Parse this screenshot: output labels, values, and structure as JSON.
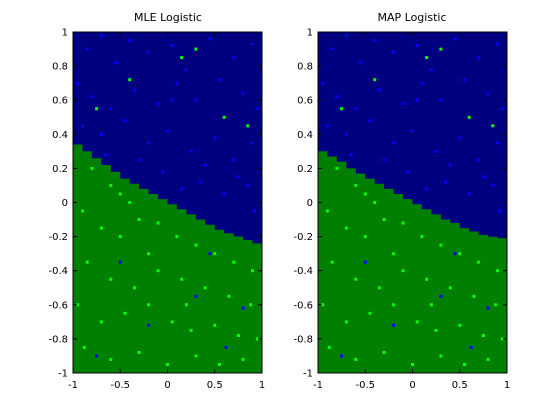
{
  "figure": {
    "colors": {
      "background": "#ffffff",
      "class_a_region": "#000080",
      "class_b_region": "#007f00",
      "class_a_points": "#0000ff",
      "class_b_points": "#00ff00"
    }
  },
  "chart_data": [
    {
      "type": "scatter",
      "title": "MLE Logistic",
      "xlabel": "",
      "ylabel": "",
      "xlim": [
        -1,
        1
      ],
      "ylim": [
        -1,
        1
      ],
      "xticks": [
        "-1",
        "-0.5",
        "0",
        "0.5",
        "1"
      ],
      "yticks": [
        "-1",
        "-0.8",
        "-0.6",
        "-0.4",
        "-0.2",
        "0",
        "0.2",
        "0.4",
        "0.6",
        "0.8",
        "1"
      ],
      "grid": false,
      "background_regions": [
        {
          "region": "upper",
          "color": "#000080"
        },
        {
          "region": "lower",
          "color": "#007f00"
        }
      ],
      "decision_boundary": {
        "x": [
          -1,
          -0.9,
          -0.8,
          -0.7,
          -0.6,
          -0.5,
          -0.4,
          -0.3,
          -0.2,
          -0.1,
          0,
          0.1,
          0.2,
          0.3,
          0.4,
          0.5,
          0.6,
          0.7,
          0.8,
          0.9,
          1
        ],
        "y": [
          0.34,
          0.3,
          0.26,
          0.22,
          0.18,
          0.14,
          0.11,
          0.08,
          0.05,
          0.02,
          -0.01,
          -0.04,
          -0.07,
          -0.1,
          -0.13,
          -0.16,
          -0.18,
          -0.2,
          -0.22,
          -0.24,
          -0.26
        ]
      },
      "series": [
        {
          "color": "#0000ff",
          "points": [
            [
              -0.85,
              0.9
            ],
            [
              -0.7,
              0.98
            ],
            [
              -0.55,
              0.82
            ],
            [
              -0.4,
              0.95
            ],
            [
              -0.2,
              0.88
            ],
            [
              0.05,
              0.92
            ],
            [
              0.2,
              0.78
            ],
            [
              0.45,
              0.96
            ],
            [
              0.7,
              0.85
            ],
            [
              0.9,
              0.93
            ],
            [
              -0.95,
              0.7
            ],
            [
              -0.8,
              0.62
            ],
            [
              -0.6,
              0.55
            ],
            [
              -0.35,
              0.66
            ],
            [
              -0.1,
              0.58
            ],
            [
              0.1,
              0.7
            ],
            [
              0.3,
              0.6
            ],
            [
              0.55,
              0.72
            ],
            [
              0.8,
              0.64
            ],
            [
              0.95,
              0.55
            ],
            [
              -0.9,
              0.45
            ],
            [
              -0.7,
              0.4
            ],
            [
              -0.45,
              0.48
            ],
            [
              -0.2,
              0.35
            ],
            [
              0.0,
              0.42
            ],
            [
              0.25,
              0.3
            ],
            [
              0.5,
              0.38
            ],
            [
              0.7,
              0.25
            ],
            [
              0.9,
              0.35
            ],
            [
              0.35,
              0.12
            ],
            [
              0.6,
              0.05
            ],
            [
              0.85,
              0.1
            ],
            [
              -0.05,
              0.18
            ],
            [
              0.15,
              0.08
            ],
            [
              0.92,
              -0.05
            ],
            [
              -0.65,
              0.28
            ],
            [
              0.75,
              0.15
            ],
            [
              0.4,
              0.22
            ],
            [
              -0.3,
              0.25
            ],
            [
              0.05,
              0.6
            ],
            [
              -0.5,
              -0.35
            ],
            [
              0.3,
              -0.55
            ],
            [
              -0.2,
              -0.72
            ],
            [
              0.8,
              -0.62
            ],
            [
              0.62,
              -0.85
            ],
            [
              -0.75,
              -0.9
            ],
            [
              0.45,
              -0.3
            ]
          ]
        },
        {
          "color": "#00ff00",
          "points": [
            [
              -0.8,
              0.2
            ],
            [
              -0.6,
              0.1
            ],
            [
              -0.4,
              0.0
            ],
            [
              -0.9,
              -0.05
            ],
            [
              -0.7,
              -0.15
            ],
            [
              -0.5,
              -0.2
            ],
            [
              -0.3,
              -0.1
            ],
            [
              -0.1,
              -0.12
            ],
            [
              0.1,
              -0.2
            ],
            [
              0.3,
              -0.25
            ],
            [
              0.5,
              -0.3
            ],
            [
              0.7,
              -0.35
            ],
            [
              0.9,
              -0.4
            ],
            [
              -0.85,
              -0.35
            ],
            [
              -0.6,
              -0.45
            ],
            [
              -0.35,
              -0.5
            ],
            [
              -0.1,
              -0.4
            ],
            [
              0.15,
              -0.45
            ],
            [
              0.4,
              -0.5
            ],
            [
              0.65,
              -0.55
            ],
            [
              0.88,
              -0.6
            ],
            [
              -0.95,
              -0.6
            ],
            [
              -0.7,
              -0.7
            ],
            [
              -0.45,
              -0.65
            ],
            [
              -0.2,
              -0.6
            ],
            [
              0.05,
              -0.7
            ],
            [
              0.25,
              -0.75
            ],
            [
              0.5,
              -0.72
            ],
            [
              0.75,
              -0.78
            ],
            [
              0.95,
              -0.8
            ],
            [
              -0.88,
              -0.85
            ],
            [
              -0.6,
              -0.92
            ],
            [
              -0.3,
              -0.88
            ],
            [
              0.0,
              -0.95
            ],
            [
              0.3,
              -0.9
            ],
            [
              0.55,
              -0.95
            ],
            [
              0.8,
              -0.92
            ],
            [
              -0.5,
              0.05
            ],
            [
              -0.2,
              -0.3
            ],
            [
              0.2,
              -0.6
            ],
            [
              -0.4,
              0.72
            ],
            [
              0.15,
              0.85
            ],
            [
              0.6,
              0.5
            ],
            [
              -0.75,
              0.55
            ],
            [
              0.85,
              0.45
            ],
            [
              0.3,
              0.9
            ]
          ]
        }
      ]
    },
    {
      "type": "scatter",
      "title": "MAP Logistic",
      "xlabel": "",
      "ylabel": "",
      "xlim": [
        -1,
        1
      ],
      "ylim": [
        -1,
        1
      ],
      "xticks": [
        "-1",
        "-0.5",
        "0",
        "0.5",
        "1"
      ],
      "yticks": [
        "-1",
        "-0.8",
        "-0.6",
        "-0.4",
        "-0.2",
        "0",
        "0.2",
        "0.4",
        "0.6",
        "0.8",
        "1"
      ],
      "grid": false,
      "background_regions": [
        {
          "region": "upper",
          "color": "#000080"
        },
        {
          "region": "lower",
          "color": "#007f00"
        }
      ],
      "decision_boundary": {
        "x": [
          -1,
          -0.9,
          -0.8,
          -0.7,
          -0.6,
          -0.5,
          -0.4,
          -0.3,
          -0.2,
          -0.1,
          0,
          0.1,
          0.2,
          0.3,
          0.4,
          0.5,
          0.6,
          0.7,
          0.8,
          0.9,
          1
        ],
        "y": [
          0.3,
          0.27,
          0.24,
          0.2,
          0.17,
          0.14,
          0.11,
          0.08,
          0.05,
          0.02,
          -0.01,
          -0.04,
          -0.07,
          -0.1,
          -0.12,
          -0.15,
          -0.17,
          -0.19,
          -0.2,
          -0.21,
          -0.22
        ]
      },
      "series": [
        {
          "color": "#0000ff",
          "points": [
            [
              -0.85,
              0.9
            ],
            [
              -0.7,
              0.98
            ],
            [
              -0.55,
              0.82
            ],
            [
              -0.4,
              0.95
            ],
            [
              -0.2,
              0.88
            ],
            [
              0.05,
              0.92
            ],
            [
              0.2,
              0.78
            ],
            [
              0.45,
              0.96
            ],
            [
              0.7,
              0.85
            ],
            [
              0.9,
              0.93
            ],
            [
              -0.95,
              0.7
            ],
            [
              -0.8,
              0.62
            ],
            [
              -0.6,
              0.55
            ],
            [
              -0.35,
              0.66
            ],
            [
              -0.1,
              0.58
            ],
            [
              0.1,
              0.7
            ],
            [
              0.3,
              0.6
            ],
            [
              0.55,
              0.72
            ],
            [
              0.8,
              0.64
            ],
            [
              0.95,
              0.55
            ],
            [
              -0.9,
              0.45
            ],
            [
              -0.7,
              0.4
            ],
            [
              -0.45,
              0.48
            ],
            [
              -0.2,
              0.35
            ],
            [
              0.0,
              0.42
            ],
            [
              0.25,
              0.3
            ],
            [
              0.5,
              0.38
            ],
            [
              0.7,
              0.25
            ],
            [
              0.9,
              0.35
            ],
            [
              0.35,
              0.12
            ],
            [
              0.6,
              0.05
            ],
            [
              0.85,
              0.1
            ],
            [
              -0.05,
              0.18
            ],
            [
              0.15,
              0.08
            ],
            [
              0.92,
              -0.05
            ],
            [
              -0.65,
              0.28
            ],
            [
              0.75,
              0.15
            ],
            [
              0.4,
              0.22
            ],
            [
              -0.3,
              0.25
            ],
            [
              0.05,
              0.6
            ],
            [
              -0.5,
              -0.35
            ],
            [
              0.3,
              -0.55
            ],
            [
              -0.2,
              -0.72
            ],
            [
              0.8,
              -0.62
            ],
            [
              0.62,
              -0.85
            ],
            [
              -0.75,
              -0.9
            ],
            [
              0.45,
              -0.3
            ]
          ]
        },
        {
          "color": "#00ff00",
          "points": [
            [
              -0.8,
              0.2
            ],
            [
              -0.6,
              0.1
            ],
            [
              -0.4,
              0.0
            ],
            [
              -0.9,
              -0.05
            ],
            [
              -0.7,
              -0.15
            ],
            [
              -0.5,
              -0.2
            ],
            [
              -0.3,
              -0.1
            ],
            [
              -0.1,
              -0.12
            ],
            [
              0.1,
              -0.2
            ],
            [
              0.3,
              -0.25
            ],
            [
              0.5,
              -0.3
            ],
            [
              0.7,
              -0.35
            ],
            [
              0.9,
              -0.4
            ],
            [
              -0.85,
              -0.35
            ],
            [
              -0.6,
              -0.45
            ],
            [
              -0.35,
              -0.5
            ],
            [
              -0.1,
              -0.4
            ],
            [
              0.15,
              -0.45
            ],
            [
              0.4,
              -0.5
            ],
            [
              0.65,
              -0.55
            ],
            [
              0.88,
              -0.6
            ],
            [
              -0.95,
              -0.6
            ],
            [
              -0.7,
              -0.7
            ],
            [
              -0.45,
              -0.65
            ],
            [
              -0.2,
              -0.6
            ],
            [
              0.05,
              -0.7
            ],
            [
              0.25,
              -0.75
            ],
            [
              0.5,
              -0.72
            ],
            [
              0.75,
              -0.78
            ],
            [
              0.95,
              -0.8
            ],
            [
              -0.88,
              -0.85
            ],
            [
              -0.6,
              -0.92
            ],
            [
              -0.3,
              -0.88
            ],
            [
              0.0,
              -0.95
            ],
            [
              0.3,
              -0.9
            ],
            [
              0.55,
              -0.95
            ],
            [
              0.8,
              -0.92
            ],
            [
              -0.5,
              0.05
            ],
            [
              -0.2,
              -0.3
            ],
            [
              0.2,
              -0.6
            ],
            [
              -0.4,
              0.72
            ],
            [
              0.15,
              0.85
            ],
            [
              0.6,
              0.5
            ],
            [
              -0.75,
              0.55
            ],
            [
              0.85,
              0.45
            ],
            [
              0.3,
              0.9
            ]
          ]
        }
      ]
    }
  ]
}
